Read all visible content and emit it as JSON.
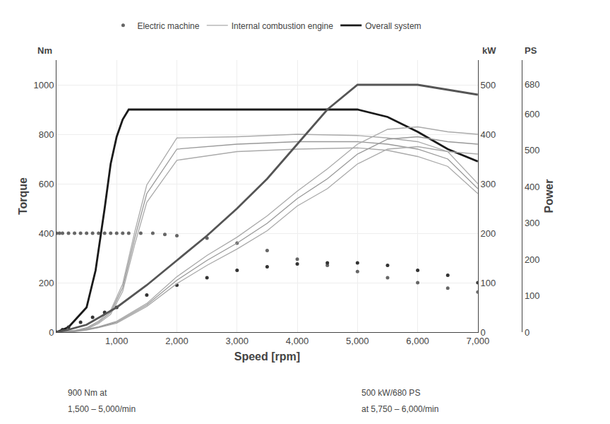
{
  "chart_data": {
    "type": "line",
    "xlabel": "Speed [rpm]",
    "ylabel": "Torque",
    "y2label": "Power",
    "y_unit": "Nm",
    "y2_unit": "kW",
    "y3_unit": "PS",
    "annotations": [
      "900 Nm at",
      "1,500 – 5,000/min",
      "500 kW/680 PS",
      "at 5,750 – 6,000/min"
    ],
    "xlim": [
      0,
      7000
    ],
    "xticks": [
      {
        "value": 1000,
        "label": "1,000"
      },
      {
        "value": 2000,
        "label": "2,000"
      },
      {
        "value": 3000,
        "label": "3,000"
      },
      {
        "value": 4000,
        "label": "4,000"
      },
      {
        "value": 5000,
        "label": "5,000"
      },
      {
        "value": 6000,
        "label": "6,000"
      },
      {
        "value": 7000,
        "label": "7,000"
      }
    ],
    "ylim": [
      0,
      1100
    ],
    "yticks": [
      0,
      200,
      400,
      600,
      800,
      1000
    ],
    "y2lim": [
      0,
      550
    ],
    "y2ticks": [
      0,
      100,
      200,
      300,
      400,
      500
    ],
    "y3lim": [
      0,
      747.791
    ],
    "y3ticks": [
      0,
      100,
      200,
      300,
      400,
      500,
      600,
      680
    ],
    "grid": true,
    "legend": "top",
    "series": [
      {
        "name": "Electric machine",
        "type": "scatter",
        "marker": "circle",
        "color": "#666666",
        "x": [
          0,
          50,
          100,
          200,
          300,
          400,
          500,
          600,
          700,
          800,
          900,
          1000,
          1100,
          1200,
          1400,
          1600,
          1800,
          2000,
          2500,
          3000,
          3500,
          4000,
          4500,
          5000,
          5500,
          6000,
          6500,
          7000
        ],
        "values": [
          400,
          400,
          400,
          400,
          400,
          400,
          400,
          400,
          400,
          400,
          400,
          400,
          400,
          400,
          400,
          400,
          395,
          390,
          380,
          360,
          330,
          295,
          270,
          245,
          220,
          200,
          178,
          162
        ]
      },
      {
        "name": "Internal combustion engine",
        "type": "line",
        "color": "#aaaaaa",
        "x": [
          0,
          300,
          500,
          700,
          900,
          1100,
          1300,
          1500,
          2000,
          3000,
          4000,
          5000,
          5500,
          6000,
          6500,
          7000
        ],
        "values": [
          0,
          6,
          18,
          45,
          88,
          195,
          405,
          595,
          785,
          790,
          800,
          795,
          785,
          770,
          730,
          600
        ]
      },
      {
        "name": "Internal combustion engine",
        "type": "line",
        "color": "#aaaaaa",
        "x": [
          0,
          300,
          500,
          700,
          900,
          1100,
          1300,
          1500,
          2000,
          3000,
          4000,
          5000,
          5500,
          6000,
          6500,
          7000
        ],
        "values": [
          0,
          4,
          12,
          35,
          72,
          165,
          355,
          525,
          695,
          730,
          740,
          745,
          735,
          710,
          670,
          560
        ]
      },
      {
        "name": "Internal combustion engine",
        "type": "line",
        "color": "#999999",
        "x": [
          0,
          300,
          500,
          700,
          900,
          1100,
          1300,
          1500,
          2000,
          3000,
          4000,
          5000,
          5500,
          6000,
          6500,
          7000
        ],
        "values": [
          0,
          5,
          15,
          40,
          80,
          180,
          380,
          560,
          740,
          760,
          770,
          770,
          760,
          740,
          700,
          580
        ]
      },
      {
        "name": "Overall system",
        "type": "line",
        "color": "#1a1a1a",
        "x": [
          0,
          200,
          500,
          650,
          800,
          900,
          1000,
          1100,
          1200,
          1300,
          1500,
          2000,
          3000,
          4000,
          5000,
          5500,
          6000,
          6500,
          7000
        ],
        "values": [
          0,
          20,
          100,
          250,
          500,
          680,
          790,
          860,
          900,
          900,
          900,
          900,
          900,
          900,
          900,
          870,
          810,
          740,
          690
        ]
      },
      {
        "name": "Electric machine",
        "type": "scatter",
        "marker": "circle",
        "color": "#333333",
        "axis": "y2",
        "x": [
          0,
          100,
          200,
          400,
          600,
          800,
          1000,
          1500,
          2000,
          2500,
          3000,
          3500,
          4000,
          4500,
          5000,
          5500,
          6000,
          6500,
          7000
        ],
        "values": [
          0,
          5,
          10,
          20,
          30,
          40,
          50,
          75,
          95,
          110,
          125,
          132,
          138,
          140,
          140,
          135,
          125,
          115,
          100
        ]
      },
      {
        "name": "Internal combustion engine",
        "type": "line",
        "color": "#aaaaaa",
        "axis": "y2",
        "x": [
          0,
          300,
          500,
          700,
          1000,
          1500,
          2000,
          2500,
          3000,
          3500,
          4000,
          4500,
          5000,
          5500,
          6000,
          6500,
          7000
        ],
        "values": [
          0,
          3,
          6,
          11,
          22,
          58,
          112,
          155,
          192,
          235,
          285,
          330,
          380,
          410,
          415,
          405,
          400
        ]
      },
      {
        "name": "Internal combustion engine",
        "type": "line",
        "color": "#aaaaaa",
        "axis": "y2",
        "x": [
          0,
          300,
          500,
          700,
          1000,
          1500,
          2000,
          2500,
          3000,
          3500,
          4000,
          4500,
          5000,
          5500,
          6000,
          6500,
          7000
        ],
        "values": [
          0,
          1,
          4,
          9,
          18,
          52,
          98,
          135,
          168,
          205,
          255,
          290,
          340,
          370,
          375,
          365,
          360
        ]
      },
      {
        "name": "Internal combustion engine",
        "type": "line",
        "color": "#999999",
        "axis": "y2",
        "x": [
          0,
          300,
          500,
          700,
          1000,
          1500,
          2000,
          2500,
          3000,
          3500,
          4000,
          4500,
          5000,
          5500,
          6000,
          6500,
          7000
        ],
        "values": [
          0,
          2,
          5,
          10,
          20,
          55,
          105,
          145,
          180,
          220,
          270,
          310,
          360,
          390,
          395,
          385,
          380
        ]
      },
      {
        "name": "Overall system",
        "type": "line",
        "color": "#555555",
        "axis": "y2",
        "x": [
          0,
          200,
          500,
          1000,
          1500,
          2000,
          2500,
          3000,
          3500,
          4000,
          4500,
          5000,
          5500,
          5750,
          6000,
          6500,
          7000
        ],
        "values": [
          0,
          5,
          15,
          50,
          95,
          145,
          195,
          250,
          310,
          380,
          450,
          500,
          500,
          500,
          500,
          490,
          480
        ]
      }
    ]
  }
}
